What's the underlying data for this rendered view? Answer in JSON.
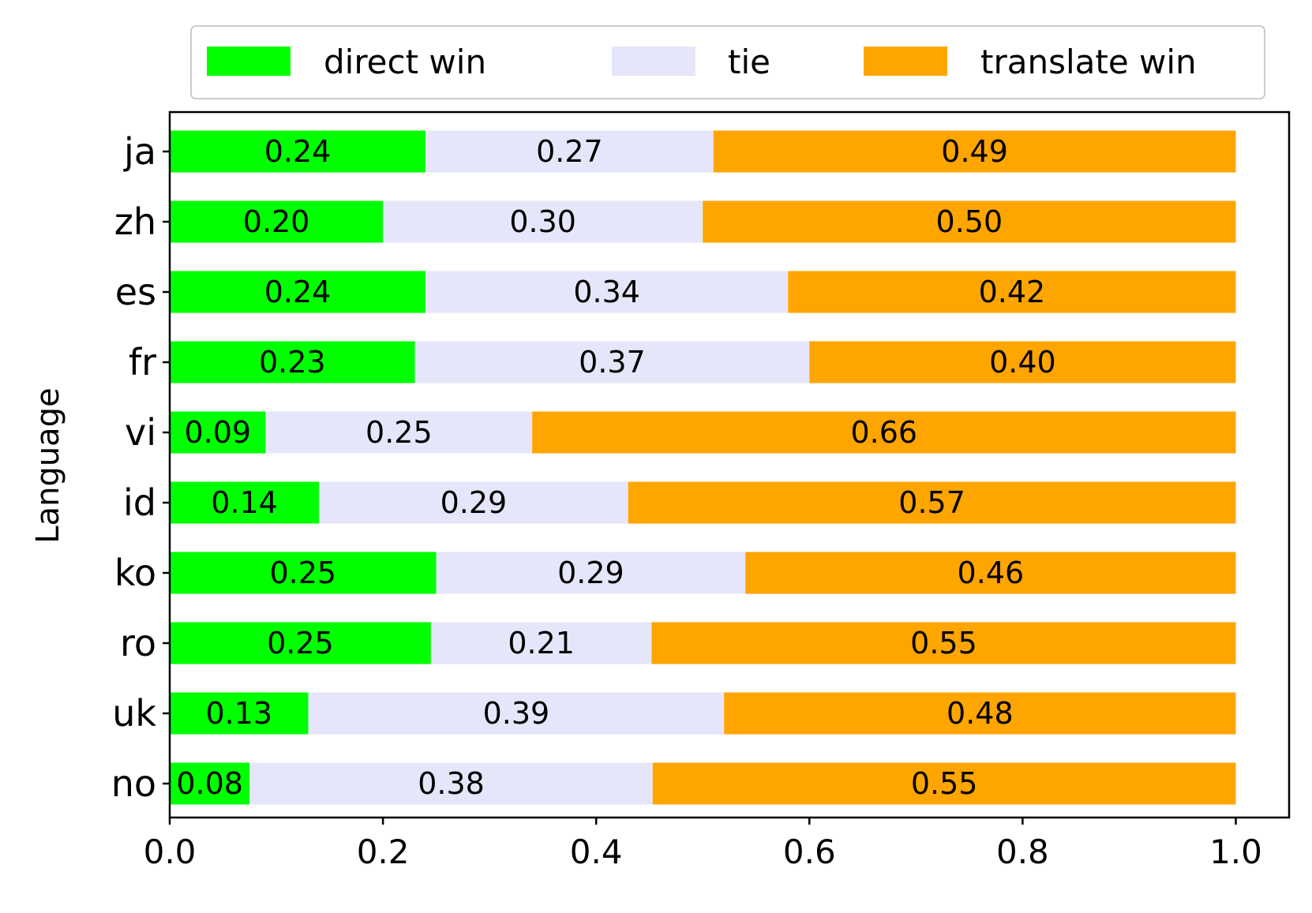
{
  "chart_data": {
    "type": "bar",
    "orientation": "horizontal",
    "stacked": true,
    "ylabel": "Language",
    "xlabel": "",
    "xlim": [
      0.0,
      1.05
    ],
    "xticks": [
      0.0,
      0.2,
      0.4,
      0.6,
      0.8,
      1.0
    ],
    "xtick_labels": [
      "0.0",
      "0.2",
      "0.4",
      "0.6",
      "0.8",
      "1.0"
    ],
    "grid": false,
    "legend": "top, outside plot, single row",
    "categories": [
      "ja",
      "zh",
      "es",
      "fr",
      "vi",
      "id",
      "ko",
      "ro",
      "uk",
      "no"
    ],
    "series": [
      {
        "name": "direct win",
        "color": "#00ff00",
        "values": [
          0.24,
          0.2,
          0.24,
          0.23,
          0.09,
          0.14,
          0.25,
          0.245,
          0.13,
          0.075
        ],
        "labels": [
          "0.24",
          "0.20",
          "0.24",
          "0.23",
          "0.09",
          "0.14",
          "0.25",
          "0.25",
          "0.13",
          "0.08"
        ]
      },
      {
        "name": "tie",
        "color": "#e6e6fa",
        "values": [
          0.27,
          0.3,
          0.34,
          0.37,
          0.25,
          0.29,
          0.29,
          0.207,
          0.39,
          0.378
        ],
        "labels": [
          "0.27",
          "0.30",
          "0.34",
          "0.37",
          "0.25",
          "0.29",
          "0.29",
          "0.21",
          "0.39",
          "0.38"
        ]
      },
      {
        "name": "translate win",
        "color": "#ffa500",
        "values": [
          0.49,
          0.5,
          0.42,
          0.4,
          0.66,
          0.57,
          0.46,
          0.548,
          0.48,
          0.547
        ],
        "labels": [
          "0.49",
          "0.50",
          "0.42",
          "0.40",
          "0.66",
          "0.57",
          "0.46",
          "0.55",
          "0.48",
          "0.55"
        ]
      }
    ]
  }
}
